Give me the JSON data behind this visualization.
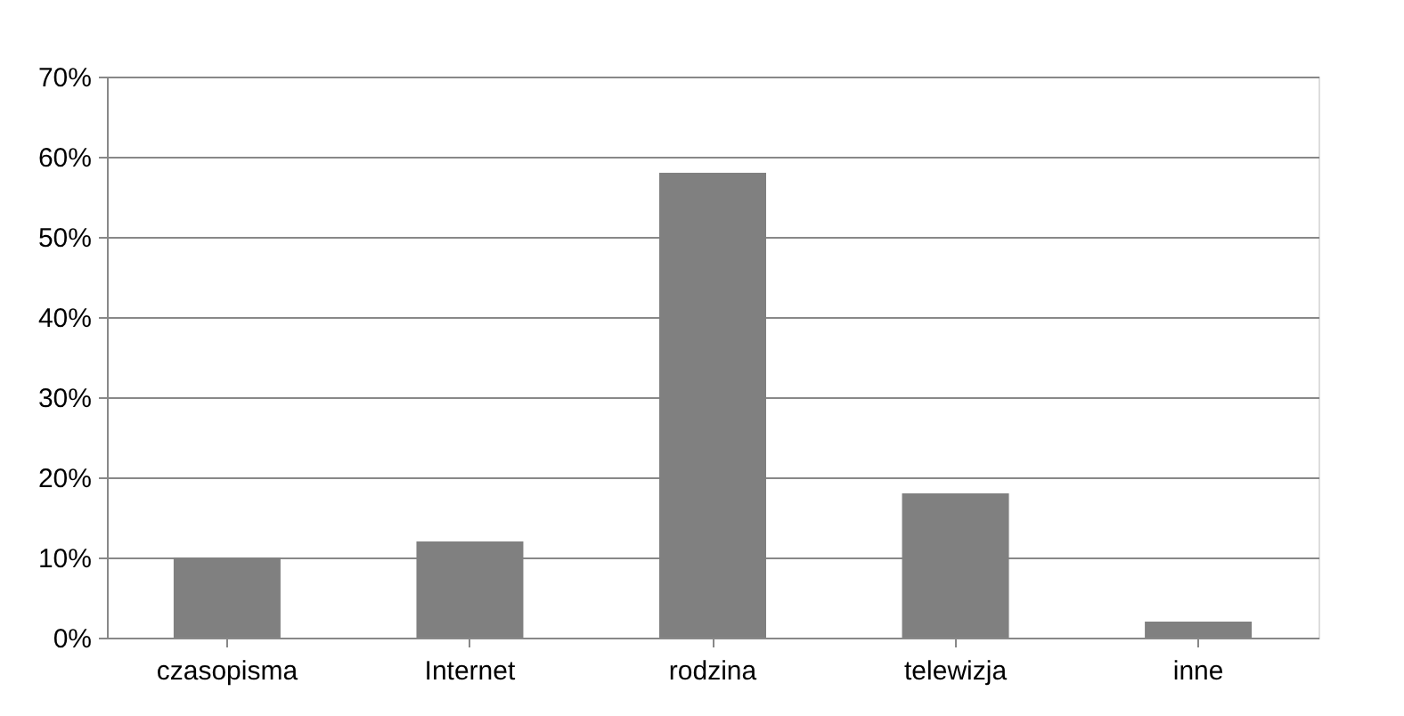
{
  "chart_data": {
    "type": "bar",
    "categories": [
      "czasopisma",
      "Internet",
      "rodzina",
      "telewizja",
      "inne"
    ],
    "values": [
      10,
      12,
      58,
      18,
      2
    ],
    "color": "#808080",
    "ylim": [
      0,
      70
    ],
    "yticks": [
      {
        "value": 0,
        "label": "0%"
      },
      {
        "value": 10,
        "label": "10%"
      },
      {
        "value": 20,
        "label": "20%"
      },
      {
        "value": 30,
        "label": "30%"
      },
      {
        "value": 40,
        "label": "40%"
      },
      {
        "value": 50,
        "label": "50%"
      },
      {
        "value": 60,
        "label": "60%"
      },
      {
        "value": 70,
        "label": "70%"
      }
    ],
    "grid": "y"
  }
}
